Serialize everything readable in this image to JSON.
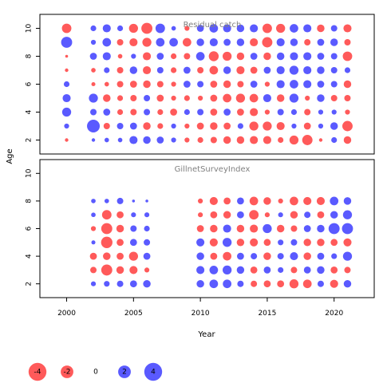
{
  "chart_data": {
    "type": "bubble",
    "xlabel": "Year",
    "ylabel": "Age",
    "xlim": [
      1998,
      2023
    ],
    "ylim": [
      1,
      11
    ],
    "x_ticks": [
      2000,
      2005,
      2010,
      2015,
      2020
    ],
    "y_ticks": [
      2,
      4,
      6,
      8,
      10
    ],
    "colors": {
      "negative": "#ff5a5a",
      "positive": "#5a5aff"
    },
    "legend": {
      "values": [
        -4,
        -2,
        0,
        2,
        4
      ],
      "labels": [
        "-4",
        "-2",
        "0",
        "2",
        "4"
      ]
    },
    "panels": [
      {
        "title": "Residual catch",
        "ages": [
          2,
          3,
          4,
          5,
          6,
          7,
          8,
          9,
          10
        ],
        "years": [
          2000,
          2002,
          2003,
          2004,
          2005,
          2006,
          2007,
          2008,
          2009,
          2010,
          2011,
          2012,
          2013,
          2014,
          2015,
          2016,
          2017,
          2018,
          2019,
          2020,
          2021
        ],
        "values": [
          [
            -0.3,
            0.3,
            0.5,
            0.5,
            1.6,
            1.4,
            1.2,
            0.6,
            -0.6,
            -0.8,
            -1.0,
            -1.4,
            -1.4,
            -1.6,
            -1.6,
            -0.8,
            -2.0,
            -2.6,
            -0.3,
            0.8,
            -1.4
          ],
          [
            0.6,
            4.0,
            -1.0,
            1.0,
            1.2,
            -1.4,
            -0.8,
            0.6,
            -0.6,
            -1.2,
            -1.4,
            -1.2,
            0.8,
            -2.0,
            -2.0,
            -1.6,
            0.6,
            -1.2,
            0.6,
            1.4,
            -2.6
          ],
          [
            2.0,
            1.0,
            1.2,
            -0.8,
            -1.0,
            1.0,
            -0.8,
            -1.2,
            0.8,
            1.0,
            -1.2,
            1.2,
            -1.2,
            -1.6,
            -0.6,
            1.0,
            0.8,
            -1.0,
            0.6,
            0.6,
            -0.6
          ],
          [
            1.6,
            2.0,
            -1.4,
            -0.8,
            -1.0,
            1.0,
            -1.2,
            -0.6,
            -0.8,
            -0.6,
            -1.2,
            -1.8,
            -2.0,
            -1.8,
            1.6,
            -1.4,
            2.0,
            -0.6,
            1.4,
            -1.0,
            -1.0
          ],
          [
            0.8,
            -0.4,
            -0.5,
            -1.0,
            -1.2,
            -1.4,
            -1.0,
            -0.6,
            1.2,
            1.0,
            -1.2,
            -1.4,
            -1.0,
            1.2,
            -0.6,
            1.6,
            1.8,
            1.6,
            1.2,
            1.0,
            -1.4
          ],
          [
            -0.3,
            -0.5,
            0.8,
            -1.0,
            1.4,
            -1.6,
            1.0,
            -0.8,
            1.2,
            -1.0,
            -1.8,
            1.4,
            -1.6,
            -1.2,
            1.2,
            1.6,
            2.0,
            1.6,
            1.4,
            1.0,
            0.8
          ],
          [
            -0.2,
            1.2,
            1.6,
            -0.5,
            0.6,
            -1.6,
            1.2,
            -0.8,
            -1.0,
            1.8,
            -2.4,
            -2.0,
            -1.4,
            1.2,
            -1.4,
            1.4,
            1.6,
            1.6,
            1.2,
            1.0,
            -2.2
          ],
          [
            3.0,
            0.6,
            1.8,
            -1.0,
            -1.6,
            -2.0,
            1.8,
            1.8,
            -1.8,
            1.4,
            1.6,
            1.2,
            1.4,
            -1.6,
            -2.6,
            1.6,
            1.4,
            -1.0,
            1.2,
            1.4,
            -1.0
          ],
          [
            -2.2,
            0.8,
            1.6,
            0.8,
            -2.0,
            -3.0,
            2.2,
            0.5,
            -0.6,
            1.2,
            1.8,
            1.6,
            1.4,
            1.6,
            -2.2,
            -2.0,
            1.8,
            1.6,
            -1.4,
            1.0,
            -1.6
          ]
        ]
      },
      {
        "title": "GillnetSurveyIndex",
        "ages": [
          2,
          3,
          4,
          5,
          6,
          7,
          8
        ],
        "years": [
          2002,
          2003,
          2004,
          2005,
          2006,
          2010,
          2011,
          2012,
          2013,
          2014,
          2015,
          2016,
          2017,
          2018,
          2019,
          2020,
          2021
        ],
        "values": [
          [
            0.6,
            0.8,
            1.0,
            1.2,
            1.4,
            1.4,
            1.8,
            1.8,
            1.0,
            -1.0,
            -1.2,
            -1.2,
            -2.0,
            -1.8,
            1.0,
            -1.6,
            1.4
          ],
          [
            -1.0,
            -3.0,
            -1.4,
            -1.6,
            -0.6,
            1.6,
            1.8,
            2.0,
            1.4,
            -1.2,
            1.2,
            0.8,
            -1.0,
            1.2,
            1.4,
            -1.2,
            -1.0
          ],
          [
            -1.2,
            -1.4,
            -1.2,
            -2.0,
            1.2,
            1.4,
            -1.2,
            -1.8,
            1.2,
            1.0,
            -1.4,
            1.0,
            1.6,
            -1.4,
            1.2,
            0.8,
            2.0
          ],
          [
            0.4,
            -3.2,
            -1.2,
            1.2,
            1.0,
            1.6,
            -1.6,
            2.0,
            -1.4,
            -1.6,
            -1.2,
            0.8,
            1.0,
            -1.4,
            -1.4,
            -1.2,
            -1.6
          ],
          [
            -0.6,
            -3.0,
            -1.4,
            1.0,
            0.8,
            -1.2,
            -1.4,
            1.6,
            -1.4,
            -1.6,
            2.0,
            -1.4,
            -1.0,
            1.2,
            1.4,
            3.0,
            3.0
          ],
          [
            0.5,
            -2.2,
            -1.2,
            0.6,
            0.6,
            -0.6,
            -1.2,
            -1.4,
            1.2,
            -2.2,
            -0.6,
            0.6,
            -1.4,
            1.0,
            -1.2,
            1.4,
            2.0
          ],
          [
            0.5,
            0.5,
            1.0,
            0.2,
            0.2,
            -0.6,
            -1.6,
            -1.2,
            1.2,
            -1.8,
            -1.4,
            -0.6,
            -1.8,
            -1.6,
            -1.6,
            1.8,
            1.4
          ]
        ]
      }
    ]
  }
}
